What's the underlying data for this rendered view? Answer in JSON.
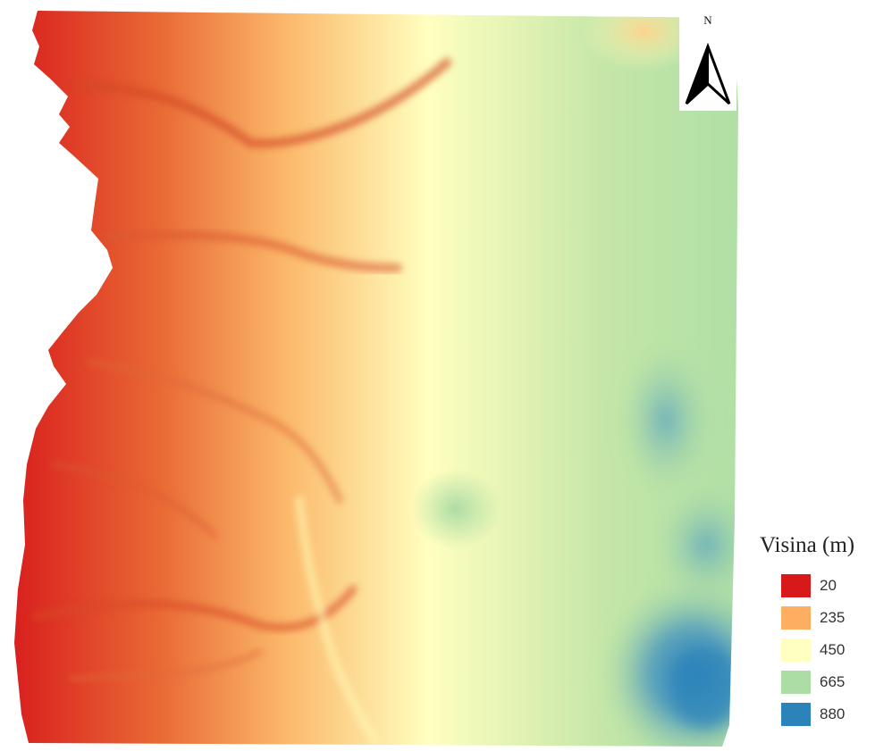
{
  "map": {
    "north_label": "N",
    "elevation_gradient": [
      "#d7191c",
      "#fdae61",
      "#ffffbf",
      "#abdda4",
      "#2b83ba"
    ]
  },
  "legend": {
    "title": "Visina (m)",
    "items": [
      {
        "label": "20",
        "color": "#d7191c"
      },
      {
        "label": "235",
        "color": "#fdae61"
      },
      {
        "label": "450",
        "color": "#ffffbf"
      },
      {
        "label": "665",
        "color": "#abdda4"
      },
      {
        "label": "880",
        "color": "#2b83ba"
      }
    ]
  }
}
